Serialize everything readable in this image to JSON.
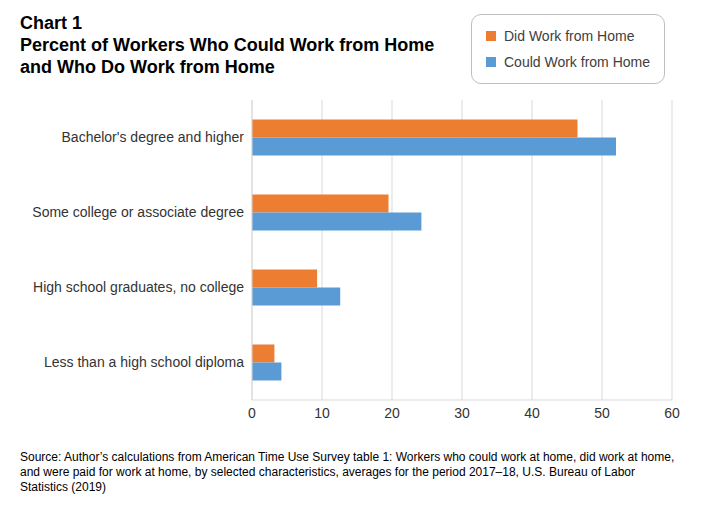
{
  "chart_data": {
    "type": "bar",
    "orientation": "horizontal",
    "title": "Chart 1",
    "subtitle": "Percent of Workers Who Could Work from Home and Who Do Work from Home",
    "categories": [
      "Bachelor's degree and higher",
      "Some college or associate degree",
      "High school graduates, no college",
      "Less than a high school diploma"
    ],
    "series": [
      {
        "name": "Did Work from Home",
        "color": "#ED7D31",
        "values": [
          46.5,
          19.5,
          9.3,
          3.2
        ]
      },
      {
        "name": "Could Work from Home",
        "color": "#5B9BD5",
        "values": [
          52,
          24.2,
          12.6,
          4.2
        ]
      }
    ],
    "xlim": [
      0,
      60
    ],
    "xticks": [
      0,
      10,
      20,
      30,
      40,
      50,
      60
    ],
    "grid": true,
    "legend": "top right",
    "source": "Source: Author’s calculations from American Time Use Survey table 1: Workers who could work at home, did work at home, and were paid for work at home, by selected characteristics, averages for the period 2017–18, U.S. Bureau of Labor Statistics (2019)"
  }
}
